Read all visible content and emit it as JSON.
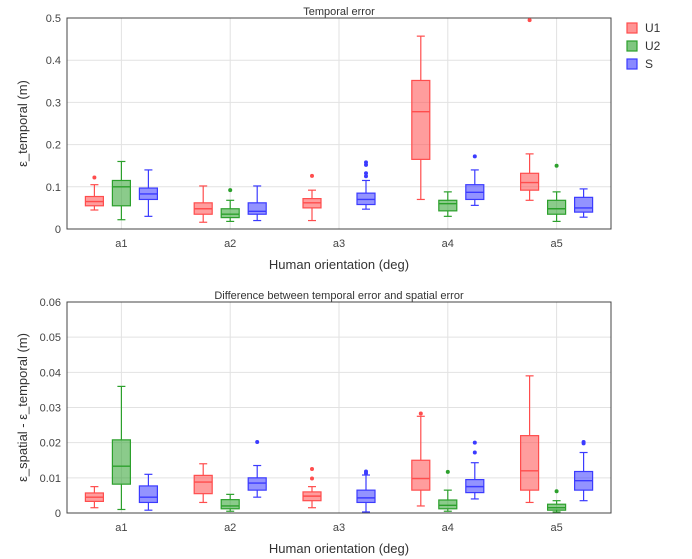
{
  "legend": [
    {
      "name": "U1",
      "color": "#ff4d4d"
    },
    {
      "name": "U2",
      "color": "#2ca02c"
    },
    {
      "name": "S",
      "color": "#3b3bff"
    }
  ],
  "chart_data": [
    {
      "type": "box",
      "title": "Temporal error",
      "xlabel": "Human orientation (deg)",
      "ylabel": "ε_temporal (m)",
      "categories": [
        "a1",
        "a2",
        "a3",
        "a4",
        "a5"
      ],
      "ylim": [
        0,
        0.5
      ],
      "yticks": [
        0,
        0.1,
        0.2,
        0.3,
        0.4,
        0.5
      ],
      "ytick_labels": [
        "0",
        "0.1",
        "0.2",
        "0.3",
        "0.4",
        "0.5"
      ],
      "grid": true,
      "series": [
        {
          "name": "U1",
          "color": "#ff4d4d",
          "boxes": [
            {
              "min": 0.045,
              "q1": 0.055,
              "median": 0.065,
              "q3": 0.077,
              "max": 0.105,
              "outliers": [
                0.122
              ]
            },
            {
              "min": 0.016,
              "q1": 0.035,
              "median": 0.048,
              "q3": 0.062,
              "max": 0.102,
              "outliers": []
            },
            {
              "min": 0.02,
              "q1": 0.05,
              "median": 0.062,
              "q3": 0.072,
              "max": 0.092,
              "outliers": [
                0.126
              ]
            },
            {
              "min": 0.07,
              "q1": 0.165,
              "median": 0.278,
              "q3": 0.352,
              "max": 0.457,
              "outliers": []
            },
            {
              "min": 0.068,
              "q1": 0.092,
              "median": 0.11,
              "q3": 0.132,
              "max": 0.178,
              "outliers": [
                0.495
              ]
            }
          ]
        },
        {
          "name": "U2",
          "color": "#2ca02c",
          "boxes": [
            {
              "min": 0.022,
              "q1": 0.055,
              "median": 0.1,
              "q3": 0.115,
              "max": 0.16,
              "outliers": []
            },
            {
              "min": 0.018,
              "q1": 0.027,
              "median": 0.035,
              "q3": 0.048,
              "max": 0.068,
              "outliers": [
                0.092
              ]
            },
            null,
            {
              "min": 0.03,
              "q1": 0.043,
              "median": 0.06,
              "q3": 0.068,
              "max": 0.088,
              "outliers": []
            },
            {
              "min": 0.018,
              "q1": 0.035,
              "median": 0.048,
              "q3": 0.068,
              "max": 0.088,
              "outliers": [
                0.15
              ]
            }
          ]
        },
        {
          "name": "S",
          "color": "#3b3bff",
          "boxes": [
            {
              "min": 0.03,
              "q1": 0.07,
              "median": 0.083,
              "q3": 0.097,
              "max": 0.14,
              "outliers": []
            },
            {
              "min": 0.02,
              "q1": 0.035,
              "median": 0.042,
              "q3": 0.062,
              "max": 0.102,
              "outliers": []
            },
            {
              "min": 0.047,
              "q1": 0.058,
              "median": 0.07,
              "q3": 0.085,
              "max": 0.115,
              "outliers": [
                0.125,
                0.132,
                0.152,
                0.158
              ]
            },
            {
              "min": 0.056,
              "q1": 0.07,
              "median": 0.087,
              "q3": 0.105,
              "max": 0.14,
              "outliers": [
                0.172
              ]
            },
            {
              "min": 0.028,
              "q1": 0.04,
              "median": 0.05,
              "q3": 0.075,
              "max": 0.095,
              "outliers": []
            }
          ]
        }
      ]
    },
    {
      "type": "box",
      "title": "Difference between temporal error and spatial error",
      "xlabel": "Human orientation (deg)",
      "ylabel": "ε_spatial - ε_temporal (m)",
      "categories": [
        "a1",
        "a2",
        "a3",
        "a4",
        "a5"
      ],
      "ylim": [
        0,
        0.06
      ],
      "yticks": [
        0,
        0.01,
        0.02,
        0.03,
        0.04,
        0.05,
        0.06
      ],
      "ytick_labels": [
        "0",
        "0.01",
        "0.02",
        "0.03",
        "0.04",
        "0.05",
        "0.06"
      ],
      "grid": true,
      "series": [
        {
          "name": "U1",
          "color": "#ff4d4d",
          "boxes": [
            {
              "min": 0.0015,
              "q1": 0.0033,
              "median": 0.0045,
              "q3": 0.0057,
              "max": 0.0075,
              "outliers": []
            },
            {
              "min": 0.003,
              "q1": 0.0055,
              "median": 0.0088,
              "q3": 0.0107,
              "max": 0.014,
              "outliers": []
            },
            {
              "min": 0.0015,
              "q1": 0.0035,
              "median": 0.0048,
              "q3": 0.006,
              "max": 0.0075,
              "outliers": [
                0.0098,
                0.0125
              ]
            },
            {
              "min": 0.002,
              "q1": 0.0065,
              "median": 0.0098,
              "q3": 0.015,
              "max": 0.0275,
              "outliers": [
                0.0283
              ]
            },
            {
              "min": 0.003,
              "q1": 0.0065,
              "median": 0.012,
              "q3": 0.022,
              "max": 0.039,
              "outliers": []
            }
          ]
        },
        {
          "name": "U2",
          "color": "#2ca02c",
          "boxes": [
            {
              "min": 0.001,
              "q1": 0.0082,
              "median": 0.0133,
              "q3": 0.0208,
              "max": 0.036,
              "outliers": []
            },
            {
              "min": 0.0005,
              "q1": 0.0012,
              "median": 0.002,
              "q3": 0.0038,
              "max": 0.0053,
              "outliers": []
            },
            null,
            {
              "min": 0.0005,
              "q1": 0.0012,
              "median": 0.0022,
              "q3": 0.0037,
              "max": 0.0065,
              "outliers": [
                0.0117
              ]
            },
            {
              "min": 0.0003,
              "q1": 0.0008,
              "median": 0.0015,
              "q3": 0.0025,
              "max": 0.0035,
              "outliers": [
                0.0062
              ]
            }
          ]
        },
        {
          "name": "S",
          "color": "#3b3bff",
          "boxes": [
            {
              "min": 0.0008,
              "q1": 0.003,
              "median": 0.0045,
              "q3": 0.0077,
              "max": 0.011,
              "outliers": []
            },
            {
              "min": 0.0045,
              "q1": 0.0065,
              "median": 0.0085,
              "q3": 0.01,
              "max": 0.0135,
              "outliers": [
                0.0202
              ]
            },
            {
              "min": 0.0003,
              "q1": 0.003,
              "median": 0.0043,
              "q3": 0.0065,
              "max": 0.0108,
              "outliers": [
                0.0113,
                0.0118
              ]
            },
            {
              "min": 0.004,
              "q1": 0.0058,
              "median": 0.0075,
              "q3": 0.0095,
              "max": 0.0143,
              "outliers": [
                0.0172,
                0.02
              ]
            },
            {
              "min": 0.0035,
              "q1": 0.0065,
              "median": 0.0092,
              "q3": 0.0118,
              "max": 0.0172,
              "outliers": [
                0.0198,
                0.0202
              ]
            }
          ]
        }
      ]
    }
  ]
}
